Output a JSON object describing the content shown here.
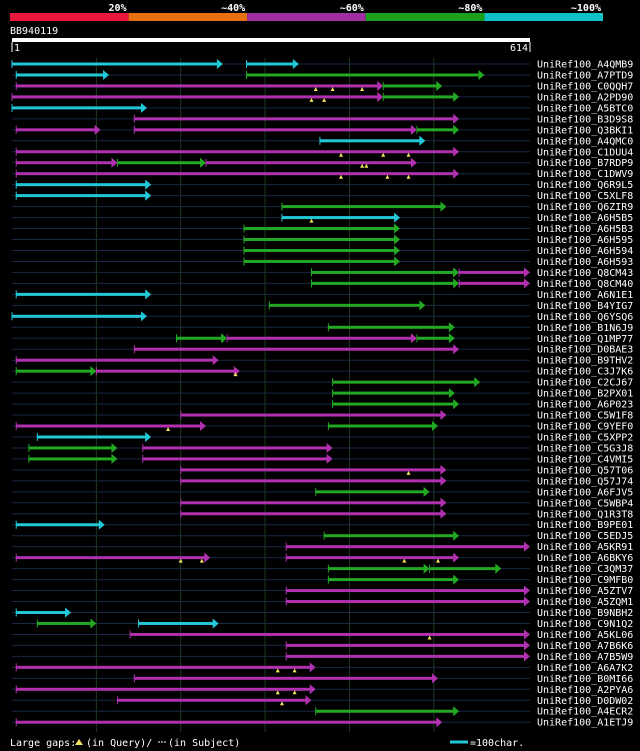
{
  "legend": {
    "colors": [
      "#e8173c",
      "#e87010",
      "#a02ea0",
      "#1aa01a",
      "#10c0c8"
    ],
    "labels": [
      "20%",
      "~40%",
      "~60%",
      "~80%",
      "~100%"
    ]
  },
  "query": {
    "id": "BB940119",
    "start": "1",
    "end": "614",
    "length": 614
  },
  "hit_colors": {
    "cyan": "#22c8d8",
    "green": "#22a822",
    "magenta": "#b030b0",
    "gap": "#f0e060"
  },
  "hits": [
    {
      "label": "UniRef100_A4QMB9",
      "segs": [
        [
          0,
          250,
          "c"
        ],
        [
          278,
          340,
          "c"
        ]
      ],
      "gaps": []
    },
    {
      "label": "UniRef100_A7PTD9",
      "segs": [
        [
          5,
          115,
          "c"
        ],
        [
          278,
          560,
          "g"
        ]
      ],
      "gaps": []
    },
    {
      "label": "UniRef100_C0QQH7",
      "segs": [
        [
          5,
          440,
          "m"
        ],
        [
          440,
          510,
          "g"
        ]
      ],
      "gaps": [
        360,
        380,
        415
      ]
    },
    {
      "label": "UniRef100_A2PD90",
      "segs": [
        [
          0,
          440,
          "m"
        ],
        [
          440,
          530,
          "g"
        ]
      ],
      "gaps": [
        355,
        370
      ]
    },
    {
      "label": "UniRef100_A5BTC0",
      "segs": [
        [
          0,
          160,
          "c"
        ]
      ],
      "gaps": []
    },
    {
      "label": "UniRef100_B3D9S8",
      "segs": [
        [
          145,
          530,
          "m"
        ]
      ],
      "gaps": []
    },
    {
      "label": "UniRef100_Q3BKI1",
      "segs": [
        [
          5,
          105,
          "m"
        ],
        [
          145,
          480,
          "m"
        ],
        [
          480,
          530,
          "g"
        ]
      ],
      "gaps": []
    },
    {
      "label": "UniRef100_A4QMC0",
      "segs": [
        [
          365,
          490,
          "c"
        ]
      ],
      "gaps": []
    },
    {
      "label": "UniRef100_C1DUU4",
      "segs": [
        [
          5,
          530,
          "m"
        ]
      ],
      "gaps": [
        390,
        440,
        470
      ]
    },
    {
      "label": "UniRef100_B7RDP9",
      "segs": [
        [
          5,
          125,
          "m"
        ],
        [
          125,
          230,
          "g"
        ],
        [
          230,
          480,
          "m"
        ]
      ],
      "gaps": [
        415,
        420
      ]
    },
    {
      "label": "UniRef100_C1DWV9",
      "segs": [
        [
          5,
          530,
          "m"
        ]
      ],
      "gaps": [
        390,
        445,
        470
      ]
    },
    {
      "label": "UniRef100_Q6R9L5",
      "segs": [
        [
          5,
          165,
          "c"
        ]
      ],
      "gaps": []
    },
    {
      "label": "UniRef100_C5XLF8",
      "segs": [
        [
          5,
          165,
          "c"
        ]
      ],
      "gaps": []
    },
    {
      "label": "UniRef100_Q6ZIR9",
      "segs": [
        [
          320,
          515,
          "g"
        ]
      ],
      "gaps": []
    },
    {
      "label": "UniRef100_A6H5B5",
      "segs": [
        [
          320,
          460,
          "c"
        ]
      ],
      "gaps": [
        355
      ]
    },
    {
      "label": "UniRef100_A6H5B3",
      "segs": [
        [
          275,
          460,
          "g"
        ]
      ],
      "gaps": []
    },
    {
      "label": "UniRef100_A6H595",
      "segs": [
        [
          275,
          460,
          "g"
        ]
      ],
      "gaps": []
    },
    {
      "label": "UniRef100_A6H594",
      "segs": [
        [
          275,
          460,
          "g"
        ]
      ],
      "gaps": []
    },
    {
      "label": "UniRef100_A6H593",
      "segs": [
        [
          275,
          460,
          "g"
        ]
      ],
      "gaps": []
    },
    {
      "label": "UniRef100_Q8CM43",
      "segs": [
        [
          355,
          530,
          "g"
        ],
        [
          530,
          614,
          "m"
        ]
      ],
      "gaps": []
    },
    {
      "label": "UniRef100_Q8CM40",
      "segs": [
        [
          355,
          530,
          "g"
        ],
        [
          530,
          614,
          "m"
        ]
      ],
      "gaps": []
    },
    {
      "label": "UniRef100_A6N1E1",
      "segs": [
        [
          5,
          165,
          "c"
        ]
      ],
      "gaps": []
    },
    {
      "label": "UniRef100_B4YIG7",
      "segs": [
        [
          305,
          490,
          "g"
        ]
      ],
      "gaps": []
    },
    {
      "label": "UniRef100_Q6YSQ6",
      "segs": [
        [
          0,
          160,
          "c"
        ]
      ],
      "gaps": []
    },
    {
      "label": "UniRef100_B1N6J9",
      "segs": [
        [
          375,
          525,
          "g"
        ]
      ],
      "gaps": []
    },
    {
      "label": "UniRef100_Q1MP77",
      "segs": [
        [
          195,
          255,
          "g"
        ],
        [
          255,
          480,
          "m"
        ],
        [
          480,
          525,
          "g"
        ]
      ],
      "gaps": []
    },
    {
      "label": "UniRef100_D0BAE3",
      "segs": [
        [
          145,
          530,
          "m"
        ]
      ],
      "gaps": []
    },
    {
      "label": "UniRef100_B9THV2",
      "segs": [
        [
          5,
          245,
          "m"
        ]
      ],
      "gaps": []
    },
    {
      "label": "UniRef100_C3J7K6",
      "segs": [
        [
          5,
          100,
          "g"
        ],
        [
          100,
          270,
          "m"
        ]
      ],
      "gaps": [
        265
      ]
    },
    {
      "label": "UniRef100_C2CJ67",
      "segs": [
        [
          380,
          555,
          "g"
        ]
      ],
      "gaps": []
    },
    {
      "label": "UniRef100_B2PX01",
      "segs": [
        [
          380,
          525,
          "g"
        ]
      ],
      "gaps": []
    },
    {
      "label": "UniRef100_A6P023",
      "segs": [
        [
          380,
          530,
          "g"
        ]
      ],
      "gaps": []
    },
    {
      "label": "UniRef100_C5W1F8",
      "segs": [
        [
          200,
          515,
          "m"
        ]
      ],
      "gaps": []
    },
    {
      "label": "UniRef100_C9YEF0",
      "segs": [
        [
          5,
          230,
          "m"
        ],
        [
          375,
          505,
          "g"
        ]
      ],
      "gaps": [
        185
      ]
    },
    {
      "label": "UniRef100_C5XPP2",
      "segs": [
        [
          30,
          165,
          "c"
        ]
      ],
      "gaps": []
    },
    {
      "label": "UniRef100_C5G3J8",
      "segs": [
        [
          20,
          125,
          "g"
        ],
        [
          155,
          380,
          "m"
        ]
      ],
      "gaps": []
    },
    {
      "label": "UniRef100_C4VMI5",
      "segs": [
        [
          20,
          125,
          "g"
        ],
        [
          155,
          380,
          "m"
        ]
      ],
      "gaps": []
    },
    {
      "label": "UniRef100_Q57T06",
      "segs": [
        [
          200,
          515,
          "m"
        ]
      ],
      "gaps": [
        470
      ]
    },
    {
      "label": "UniRef100_Q57J74",
      "segs": [
        [
          200,
          515,
          "m"
        ]
      ],
      "gaps": []
    },
    {
      "label": "UniRef100_A6FJV5",
      "segs": [
        [
          360,
          495,
          "g"
        ]
      ],
      "gaps": []
    },
    {
      "label": "UniRef100_C5WBP4",
      "segs": [
        [
          200,
          515,
          "m"
        ]
      ],
      "gaps": []
    },
    {
      "label": "UniRef100_Q1R3T8",
      "segs": [
        [
          200,
          515,
          "m"
        ]
      ],
      "gaps": []
    },
    {
      "label": "UniRef100_B9PE01",
      "segs": [
        [
          5,
          110,
          "c"
        ]
      ],
      "gaps": []
    },
    {
      "label": "UniRef100_C5EDJ5",
      "segs": [
        [
          370,
          530,
          "g"
        ]
      ],
      "gaps": []
    },
    {
      "label": "UniRef100_A5KR91",
      "segs": [
        [
          325,
          614,
          "m"
        ]
      ],
      "gaps": []
    },
    {
      "label": "UniRef100_A6BKY6",
      "segs": [
        [
          5,
          235,
          "m"
        ],
        [
          325,
          530,
          "m"
        ]
      ],
      "gaps": [
        200,
        225,
        465,
        505
      ]
    },
    {
      "label": "UniRef100_C3QM37",
      "segs": [
        [
          375,
          495,
          "g"
        ],
        [
          495,
          580,
          "g"
        ]
      ],
      "gaps": []
    },
    {
      "label": "UniRef100_C9MFB0",
      "segs": [
        [
          375,
          530,
          "g"
        ]
      ],
      "gaps": []
    },
    {
      "label": "UniRef100_A5ZTV7",
      "segs": [
        [
          325,
          614,
          "m"
        ]
      ],
      "gaps": []
    },
    {
      "label": "UniRef100_A5ZQM1",
      "segs": [
        [
          325,
          614,
          "m"
        ]
      ],
      "gaps": []
    },
    {
      "label": "UniRef100_B9NBH2",
      "segs": [
        [
          5,
          70,
          "c"
        ]
      ],
      "gaps": []
    },
    {
      "label": "UniRef100_C9N1Q2",
      "segs": [
        [
          30,
          100,
          "g"
        ],
        [
          150,
          245,
          "c"
        ]
      ],
      "gaps": []
    },
    {
      "label": "UniRef100_A5KL06",
      "segs": [
        [
          140,
          614,
          "m"
        ]
      ],
      "gaps": [
        495
      ]
    },
    {
      "label": "UniRef100_A7B6K6",
      "segs": [
        [
          325,
          614,
          "m"
        ]
      ],
      "gaps": []
    },
    {
      "label": "UniRef100_A7B5W9",
      "segs": [
        [
          325,
          614,
          "m"
        ]
      ],
      "gaps": []
    },
    {
      "label": "UniRef100_A6A7K2",
      "segs": [
        [
          5,
          360,
          "m"
        ]
      ],
      "gaps": [
        315,
        335
      ]
    },
    {
      "label": "UniRef100_B0MI66",
      "segs": [
        [
          145,
          505,
          "m"
        ]
      ],
      "gaps": []
    },
    {
      "label": "UniRef100_A2PYA6",
      "segs": [
        [
          5,
          360,
          "m"
        ]
      ],
      "gaps": [
        315,
        335
      ]
    },
    {
      "label": "UniRef100_D0DW02",
      "segs": [
        [
          125,
          355,
          "m"
        ]
      ],
      "gaps": [
        320
      ]
    },
    {
      "label": "UniRef100_A4ECR2",
      "segs": [
        [
          360,
          530,
          "g"
        ]
      ],
      "gaps": []
    },
    {
      "label": "UniRef100_A1ETJ9",
      "segs": [
        [
          5,
          510,
          "m"
        ]
      ],
      "gaps": []
    }
  ],
  "footer": {
    "large_gaps_label": "Large gaps:",
    "in_query": "(in Query)/",
    "in_subject": "(in Subject)",
    "scale_label": "=100char."
  }
}
